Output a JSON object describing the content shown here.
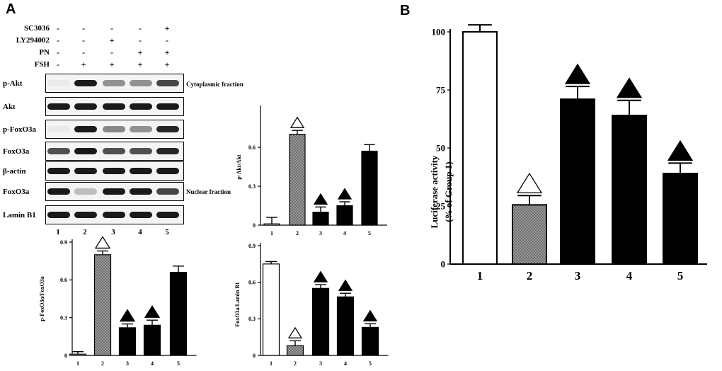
{
  "panel_a_label": "A",
  "panel_b_label": "B",
  "treatments": [
    {
      "label": "SC3036",
      "marks": [
        "-",
        "-",
        "-",
        "-",
        "+"
      ]
    },
    {
      "label": "LY294002",
      "marks": [
        "-",
        "-",
        "+",
        "-",
        "-"
      ]
    },
    {
      "label": "PN",
      "marks": [
        "-",
        "-",
        "-",
        "+",
        "+"
      ]
    },
    {
      "label": "FSH",
      "marks": [
        "-",
        "+",
        "+",
        "+",
        "+"
      ]
    }
  ],
  "blots": [
    {
      "label": "p-Akt",
      "fraction": "Cytoplasmic fraction",
      "intensity": [
        0.0,
        1.0,
        0.45,
        0.45,
        0.8
      ]
    },
    {
      "label": "Akt",
      "fraction": "",
      "intensity": [
        1,
        1,
        1,
        1,
        1
      ]
    },
    {
      "label": "p-FoxO3a",
      "fraction": "",
      "intensity": [
        0.0,
        1.0,
        0.5,
        0.45,
        0.95
      ]
    },
    {
      "label": "FoxO3a",
      "fraction": "",
      "intensity": [
        0.75,
        1,
        0.75,
        0.75,
        0.95
      ]
    },
    {
      "label": "β-actin",
      "fraction": "",
      "intensity": [
        1,
        1,
        1,
        1,
        1
      ]
    },
    {
      "label": "FoxO3a",
      "fraction": "Nuclear fraction",
      "intensity": [
        1,
        0.25,
        1,
        1,
        0.8
      ]
    },
    {
      "label": "Lamin B1",
      "fraction": "",
      "intensity": [
        1,
        1,
        1,
        1,
        1
      ]
    }
  ],
  "lanes": [
    "1",
    "2",
    "3",
    "4",
    "5"
  ],
  "chart_data": [
    {
      "id": "pakt",
      "type": "bar",
      "title": "",
      "ylabel": "p-Akt/Akt",
      "categories": [
        "1",
        "2",
        "3",
        "4",
        "5"
      ],
      "values": [
        0.01,
        0.7,
        0.1,
        0.15,
        0.57
      ],
      "errors": [
        0.05,
        0.03,
        0.04,
        0.03,
        0.05
      ],
      "fills": [
        "white",
        "dotted",
        "black",
        "black",
        "black"
      ],
      "markers": [
        "",
        "△",
        "▲",
        "▲",
        ""
      ],
      "yticks": [
        "0",
        "0.3",
        "0.6"
      ],
      "ytick_values": [
        0,
        0.3,
        0.6
      ],
      "ylim": [
        0,
        0.9
      ]
    },
    {
      "id": "pfoxo",
      "type": "bar",
      "title": "",
      "ylabel": "p-FoxO3a/FoxO3a",
      "categories": [
        "1",
        "2",
        "3",
        "4",
        "5"
      ],
      "values": [
        0.01,
        0.8,
        0.22,
        0.24,
        0.66
      ],
      "errors": [
        0.02,
        0.03,
        0.03,
        0.04,
        0.05
      ],
      "fills": [
        "white",
        "dotted",
        "black",
        "black",
        "black"
      ],
      "markers": [
        "",
        "△",
        "▲",
        "▲",
        ""
      ],
      "yticks": [
        "0",
        "0.3",
        "0.6",
        "0.9"
      ],
      "ytick_values": [
        0,
        0.3,
        0.6,
        0.9
      ],
      "ylim": [
        0,
        0.9
      ]
    },
    {
      "id": "nuclear",
      "type": "bar",
      "title": "",
      "ylabel": "FoxO3a/Lamin B1",
      "categories": [
        "1",
        "2",
        "3",
        "4",
        "5"
      ],
      "values": [
        0.75,
        0.08,
        0.55,
        0.48,
        0.23
      ],
      "errors": [
        0.02,
        0.04,
        0.03,
        0.03,
        0.03
      ],
      "fills": [
        "white",
        "dotted",
        "black",
        "black",
        "black"
      ],
      "markers": [
        "",
        "△",
        "▲",
        "▲",
        "▲"
      ],
      "yticks": [
        "0",
        "0.3",
        "0.6",
        "0.9"
      ],
      "ytick_values": [
        0,
        0.3,
        0.6,
        0.9
      ],
      "ylim": [
        0,
        0.9
      ]
    },
    {
      "id": "luciferase",
      "type": "bar",
      "title": "",
      "ylabel": "Luciferase activity",
      "ylabel2": "(% of Group 1)",
      "categories": [
        "1",
        "2",
        "3",
        "4",
        "5"
      ],
      "values": [
        100,
        25.5,
        71,
        64,
        39
      ],
      "errors": [
        3,
        4,
        5.5,
        6.5,
        4.5
      ],
      "fills": [
        "white",
        "dotted",
        "black",
        "black",
        "black"
      ],
      "markers": [
        "",
        "△",
        "▲",
        "▲",
        "▲"
      ],
      "yticks": [
        "0",
        "25",
        "50",
        "75",
        "100"
      ],
      "ytick_values": [
        0,
        25,
        50,
        75,
        100
      ],
      "ylim": [
        0,
        100
      ]
    }
  ]
}
